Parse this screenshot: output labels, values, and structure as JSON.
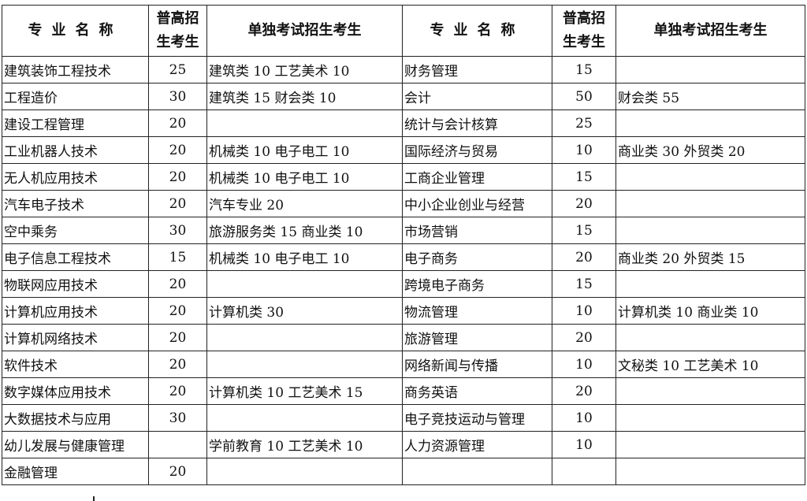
{
  "headers": {
    "major": "专业名称",
    "general_line1": "普高招",
    "general_line2": "生考生",
    "single": "单独考试招生考生"
  },
  "rows": [
    {
      "left": {
        "name": "建筑装饰工程技术",
        "general": "25",
        "single": "建筑类 10  工艺美术 10"
      },
      "right": {
        "name": "财务管理",
        "general": "15",
        "single": ""
      }
    },
    {
      "left": {
        "name": "工程造价",
        "general": "30",
        "single": "建筑类 15  财会类 10"
      },
      "right": {
        "name": "会计",
        "general": "50",
        "single": "财会类 55"
      }
    },
    {
      "left": {
        "name": "建设工程管理",
        "general": "20",
        "single": ""
      },
      "right": {
        "name": "统计与会计核算",
        "general": "25",
        "single": ""
      }
    },
    {
      "left": {
        "name": "工业机器人技术",
        "general": "20",
        "single": "机械类 10  电子电工 10"
      },
      "right": {
        "name": "国际经济与贸易",
        "general": "10",
        "single": "商业类 30  外贸类 20"
      }
    },
    {
      "left": {
        "name": "无人机应用技术",
        "general": "20",
        "single": "机械类 10  电子电工 10"
      },
      "right": {
        "name": "工商企业管理",
        "general": "15",
        "single": ""
      }
    },
    {
      "left": {
        "name": "汽车电子技术",
        "general": "20",
        "single": "汽车专业 20"
      },
      "right": {
        "name": "中小企业创业与经营",
        "general": "20",
        "single": ""
      }
    },
    {
      "left": {
        "name": "空中乘务",
        "general": "30",
        "single": "旅游服务类 15  商业类 10"
      },
      "right": {
        "name": "市场营销",
        "general": "15",
        "single": ""
      }
    },
    {
      "left": {
        "name": "电子信息工程技术",
        "general": "15",
        "single": "机械类 10  电子电工 10"
      },
      "right": {
        "name": "电子商务",
        "general": "20",
        "single": "商业类 20  外贸类 15"
      }
    },
    {
      "left": {
        "name": "物联网应用技术",
        "general": "20",
        "single": ""
      },
      "right": {
        "name": "跨境电子商务",
        "general": "15",
        "single": ""
      }
    },
    {
      "left": {
        "name": "计算机应用技术",
        "general": "20",
        "single": "计算机类 30"
      },
      "right": {
        "name": "物流管理",
        "general": "10",
        "single": "计算机类 10  商业类 10"
      }
    },
    {
      "left": {
        "name": "计算机网络技术",
        "general": "20",
        "single": ""
      },
      "right": {
        "name": "旅游管理",
        "general": "20",
        "single": ""
      }
    },
    {
      "left": {
        "name": "软件技术",
        "general": "20",
        "single": ""
      },
      "right": {
        "name": "网络新闻与传播",
        "general": "10",
        "single": "文秘类 10  工艺美术 10"
      }
    },
    {
      "left": {
        "name": "数字媒体应用技术",
        "general": "20",
        "single": "计算机类 10  工艺美术 15"
      },
      "right": {
        "name": "商务英语",
        "general": "20",
        "single": ""
      }
    },
    {
      "left": {
        "name": "大数据技术与应用",
        "general": "30",
        "single": ""
      },
      "right": {
        "name": "电子竞技运动与管理",
        "general": "10",
        "single": ""
      }
    },
    {
      "left": {
        "name": "幼儿发展与健康管理",
        "general": "",
        "single": "学前教育 10  工艺美术 10"
      },
      "right": {
        "name": "人力资源管理",
        "general": "10",
        "single": ""
      }
    },
    {
      "left": {
        "name": "金融管理",
        "general": "20",
        "single": ""
      },
      "right": {
        "name": "",
        "general": "",
        "single": ""
      }
    }
  ]
}
